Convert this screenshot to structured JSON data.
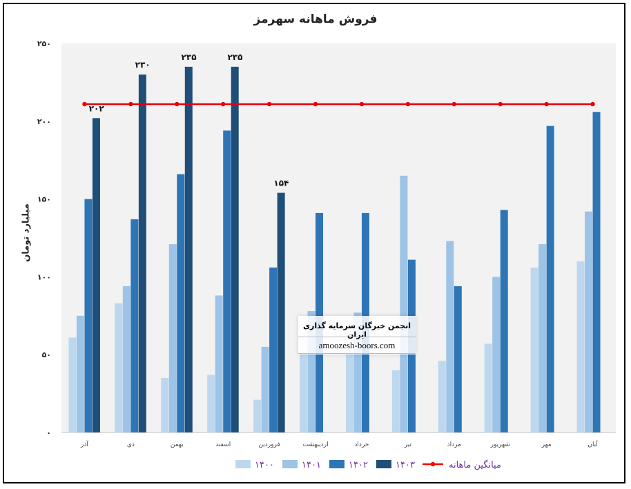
{
  "chart_data": {
    "type": "bar",
    "title": "فروش ماهانه سهرمز",
    "ylabel": "میلیارد تومان",
    "xlabel": "",
    "ylim": [
      0,
      250
    ],
    "yticks": [
      "۰",
      "۵۰",
      "۱۰۰",
      "۱۵۰",
      "۲۰۰",
      "۲۵۰"
    ],
    "ytick_values": [
      0,
      50,
      100,
      150,
      200,
      250
    ],
    "categories": [
      "آذر",
      "دی",
      "بهمن",
      "اسفند",
      "فروردین",
      "اردیبهشت",
      "خرداد",
      "تیر",
      "مرداد",
      "شهریور",
      "مهر",
      "آبان"
    ],
    "series": [
      {
        "name": "۱۴۰۰",
        "color": "#bdd7ee",
        "values": [
          61,
          83,
          35,
          37,
          21,
          51,
          51,
          40,
          46,
          57,
          106,
          110
        ]
      },
      {
        "name": "۱۴۰۱",
        "color": "#9dc3e6",
        "values": [
          75,
          94,
          121,
          88,
          55,
          78,
          77,
          165,
          123,
          100,
          121,
          142
        ]
      },
      {
        "name": "۱۴۰۲",
        "color": "#2e75b6",
        "values": [
          150,
          137,
          166,
          194,
          106,
          141,
          141,
          111,
          94,
          143,
          197,
          206
        ]
      },
      {
        "name": "۱۴۰۳",
        "color": "#1f4e79",
        "values": [
          202,
          230,
          235,
          235,
          154,
          null,
          null,
          null,
          null,
          null,
          null,
          null
        ]
      }
    ],
    "data_labels": [
      "۲۰۲",
      "۲۳۰",
      "۲۳۵",
      "۲۳۵",
      "۱۵۴"
    ],
    "line": {
      "name": "میانگین ماهانه",
      "color": "#ff0000",
      "value": 211
    },
    "grid": false,
    "legend": "bottom"
  },
  "watermark": {
    "title": "انجمن خبرگان سرمایه گذاری ایران",
    "url": "amoozesh-boors.com"
  }
}
